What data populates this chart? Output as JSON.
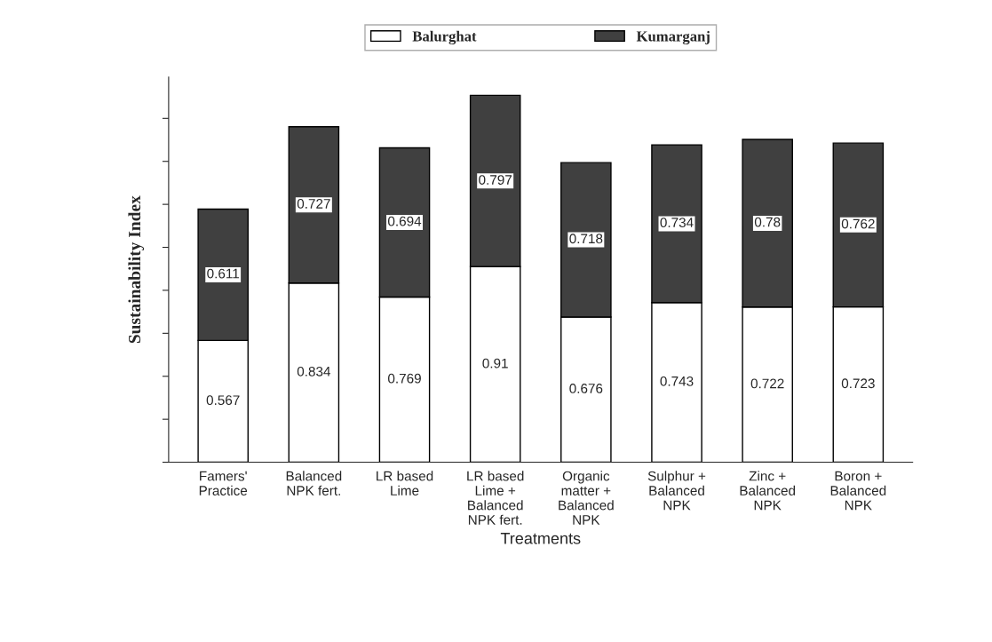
{
  "chart_data": {
    "type": "bar",
    "stacked": true,
    "data_labels": true,
    "xlabel": "Treatments",
    "ylabel": "Sustainability Index",
    "legend": "top",
    "tick_labels": "x",
    "grid": false,
    "categories": [
      "Famers'\nPractice",
      "Balanced\nNPK fert.",
      "LR based\nLime",
      "LR based\nLime +\nBalanced\nNPK fert.",
      "Organic\nmatter +\nBalanced\nNPK",
      "Sulphur +\nBalanced\nNPK",
      "Zinc +\nBalanced\nNPK",
      "Boron +\nBalanced\nNPK"
    ],
    "series": [
      {
        "name": "Balurghat",
        "color": "#ffffff",
        "values": [
          0.567,
          0.834,
          0.769,
          0.91,
          0.676,
          0.743,
          0.722,
          0.723
        ]
      },
      {
        "name": "Kumarganj",
        "color": "#404040",
        "values": [
          0.611,
          0.727,
          0.694,
          0.797,
          0.718,
          0.734,
          0.78,
          0.762
        ]
      }
    ]
  }
}
